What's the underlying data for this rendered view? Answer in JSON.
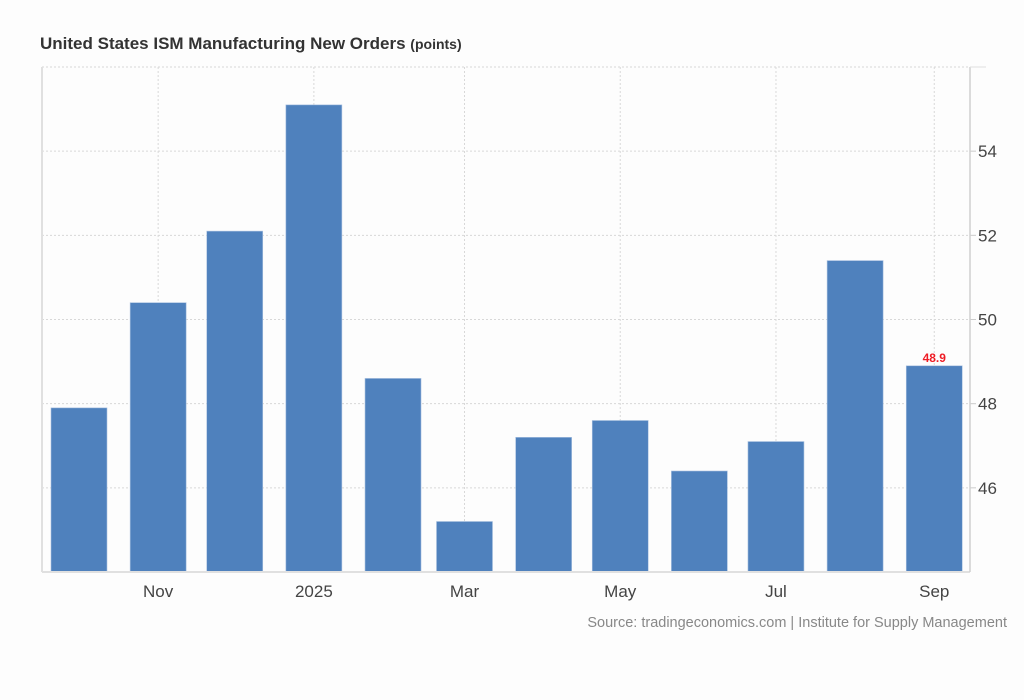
{
  "chart_data": {
    "type": "bar",
    "title": "United States ISM Manufacturing New Orders",
    "unit": "(points)",
    "categories": [
      "2024-10",
      "2024-11",
      "2024-12",
      "2025-01",
      "2025-02",
      "2025-03",
      "2025-04",
      "2025-05",
      "2025-06",
      "2025-07",
      "2025-08",
      "2025-09"
    ],
    "values": [
      47.9,
      50.4,
      52.1,
      55.1,
      48.6,
      45.2,
      47.2,
      47.6,
      46.4,
      47.1,
      51.4,
      48.9
    ],
    "xticks": [
      {
        "date": "2024-11",
        "label": "Nov"
      },
      {
        "date": "2025-01",
        "label": "2025"
      },
      {
        "date": "2025-03",
        "label": "Mar"
      },
      {
        "date": "2025-05",
        "label": "May"
      },
      {
        "date": "2025-07",
        "label": "Jul"
      },
      {
        "date": "2025-09",
        "label": "Sep"
      }
    ],
    "yticks": [
      46,
      48,
      50,
      52,
      54
    ],
    "ylim": [
      44,
      56
    ],
    "yaxis_position": "right",
    "grid": true,
    "last_value_label": "48.9",
    "xlabel": "",
    "ylabel": "",
    "bar_color": "#4f81bd",
    "last_label_color": "#ee1c25",
    "source": "Source: tradingeconomics.com | Institute for Supply Management"
  }
}
